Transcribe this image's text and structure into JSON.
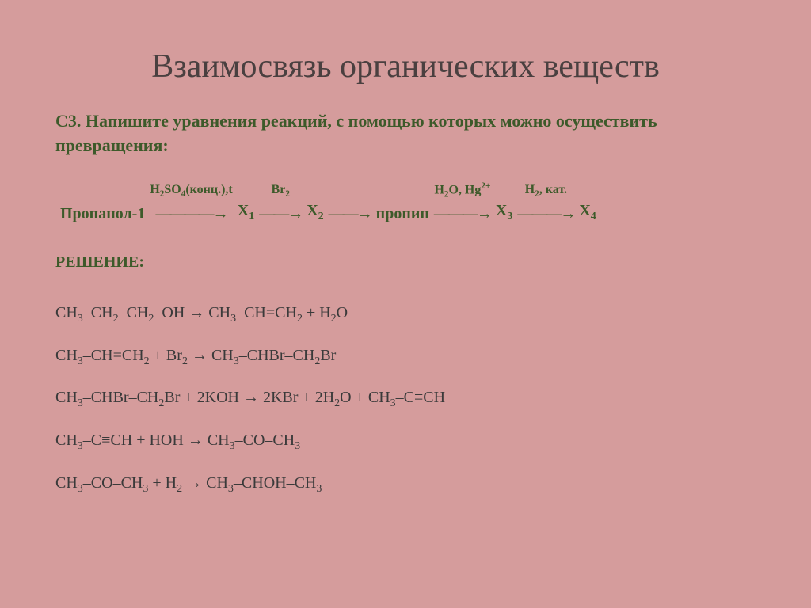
{
  "colors": {
    "background": "#d59c9c",
    "title": "#4a4040",
    "greenText": "#3d5a2a",
    "bodyText": "#3a3a3a"
  },
  "title": "Взаимосвязь органических веществ",
  "taskLabel": "С3. Напишите уравнения реакций, с помощью которых можно осуществить превращения:",
  "scheme": {
    "start": "Пропанол-1",
    "steps": [
      {
        "over_html": "H<sub>2</sub>SO<sub>4</sub>(конц.),t",
        "arrow": "————→",
        "target_html": "X<sub>1</sub>"
      },
      {
        "over_html": "Br<sub>2</sub>",
        "arrow": "——→",
        "target_html": "X<sub>2</sub>"
      },
      {
        "over_html": "",
        "arrow": "——→",
        "target_html": "пропин"
      },
      {
        "over_html": "H<sub>2</sub>O, Hg<sup>2+</sup>",
        "arrow": "———→",
        "target_html": "X<sub>3</sub>"
      },
      {
        "over_html": "H<sub>2</sub>, кат.",
        "arrow": "———→",
        "target_html": "X<sub>4</sub>"
      }
    ]
  },
  "solutionLabel": "РЕШЕНИЕ:",
  "equations": [
    "CH<sub>3</sub>–CH<sub>2</sub>–CH<sub>2</sub>–OH <span class='rarr'>→</span> CH<sub>3</sub>–CH=CH<sub>2</sub> + H<sub>2</sub>O",
    "CH<sub>3</sub>–CH=CH<sub>2</sub> + Br<sub>2</sub> <span class='rarr'>→</span> CH<sub>3</sub>–CHBr–CH<sub>2</sub>Br",
    "CH<sub>3</sub>–CHBr–CH<sub>2</sub>Br + 2KOH <span class='rarr'>→</span> 2KBr + 2H<sub>2</sub>O + CH<sub>3</sub>–C≡CH",
    "CH<sub>3</sub>–C≡CH + HOH <span class='rarr'>→</span> CH<sub>3</sub>–CO–CH<sub>3</sub>",
    "CH<sub>3</sub>–CO–CH<sub>3</sub> + H<sub>2</sub> <span class='rarr'>→</span> CH<sub>3</sub>–CHOH–CH<sub>3</sub>"
  ]
}
